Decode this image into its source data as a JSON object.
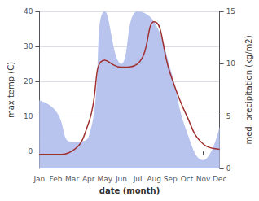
{
  "chart_data": {
    "type": "line",
    "xlabel": "date (month)",
    "ylabel": "max temp (C)",
    "y2label": "med. precipitation (kg/m2)",
    "categories": [
      "Jan",
      "Feb",
      "Mar",
      "Apr",
      "May",
      "Jun",
      "Jul",
      "Aug",
      "Sep",
      "Oct",
      "Nov",
      "Dec"
    ],
    "series": [
      {
        "type": "area",
        "axis": "y2",
        "color": "#b8c4ee",
        "values": [
          6.5,
          5.5,
          2.5,
          3,
          15,
          10,
          15,
          14,
          9.5,
          3.5,
          0.8,
          4
        ]
      },
      {
        "type": "line",
        "color": "#a03030",
        "values": [
          -1,
          -1,
          0,
          8,
          26,
          24,
          25,
          37,
          22,
          10,
          2,
          0.5
        ]
      }
    ],
    "ylim": [
      -5,
      40
    ],
    "yticks": [
      0,
      10,
      20,
      30,
      40
    ],
    "y2lim": [
      0,
      15
    ],
    "y2ticks": [
      0,
      5,
      10,
      15
    ],
    "grid": true
  }
}
